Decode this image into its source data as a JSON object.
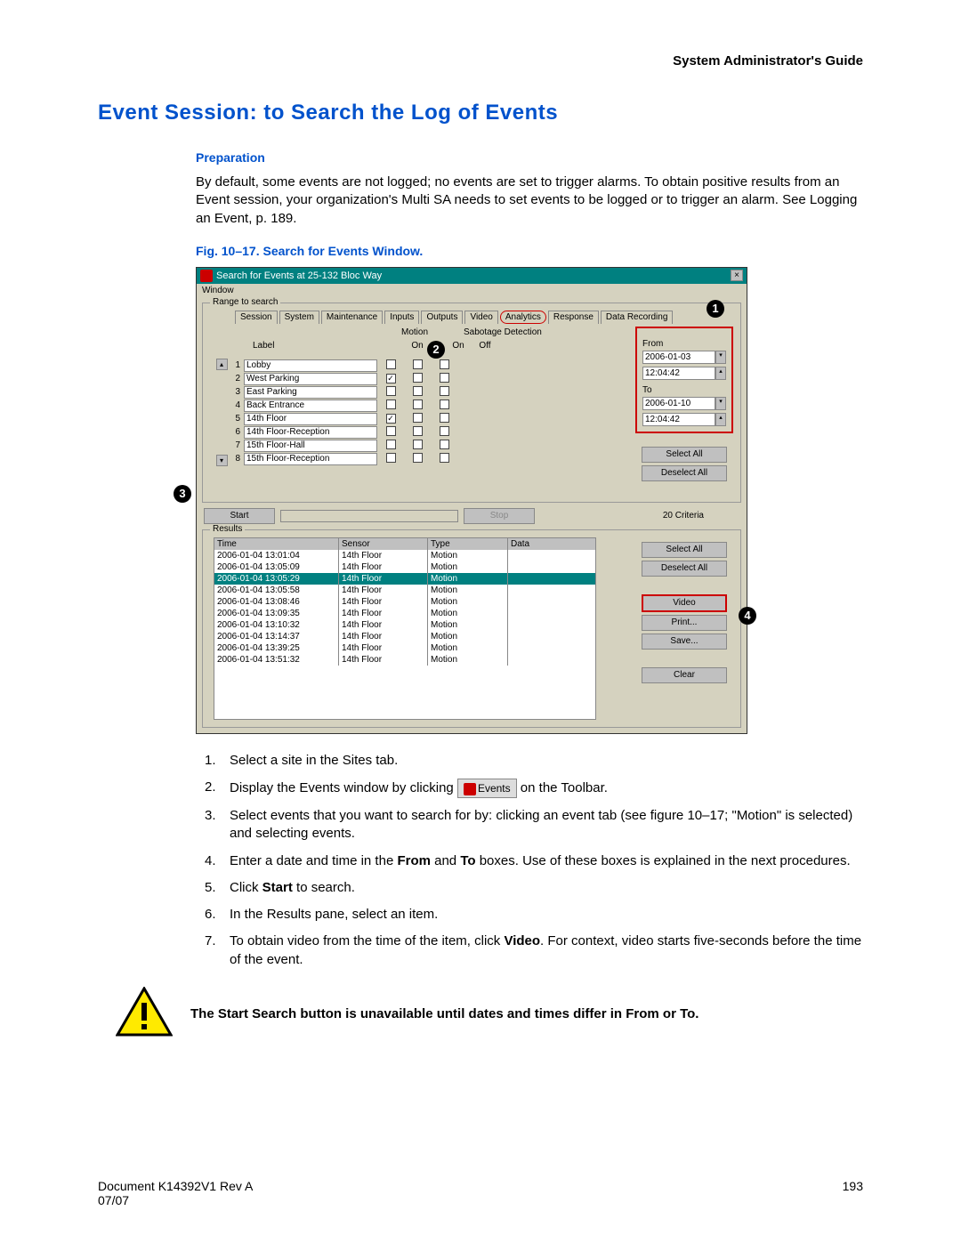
{
  "header": {
    "guide": "System Administrator's Guide"
  },
  "title": "Event Session: to Search the Log of Events",
  "preparation": {
    "label": "Preparation",
    "text": "By default, some events are not logged; no events are set to trigger alarms. To obtain positive results from an Event session, your organization's Multi SA needs to set events to be logged or to trigger an alarm. See Logging an Event, p. 189."
  },
  "figure": {
    "caption": "Fig. 10–17.  Search for Events Window."
  },
  "window": {
    "title": "Search for Events at 25-132 Bloc Way",
    "menu": "Window",
    "range_group": "Range to search",
    "tabs": [
      "Session",
      "System",
      "Maintenance",
      "Inputs",
      "Outputs",
      "Video",
      "Analytics",
      "Response",
      "Data Recording"
    ],
    "active_tab_index": 6,
    "sub_cols_left": "Motion",
    "sub_cols_right": "Sabotage Detection",
    "header_label": "Label",
    "header_cols": [
      "On",
      "On",
      "Off"
    ],
    "rows": [
      {
        "n": "1",
        "label": "Lobby",
        "checks": [
          false,
          false,
          false
        ]
      },
      {
        "n": "2",
        "label": "West Parking",
        "checks": [
          true,
          false,
          false
        ]
      },
      {
        "n": "3",
        "label": "East Parking",
        "checks": [
          false,
          false,
          false
        ]
      },
      {
        "n": "4",
        "label": "Back Entrance",
        "checks": [
          false,
          false,
          false
        ]
      },
      {
        "n": "5",
        "label": "14th Floor",
        "checks": [
          true,
          false,
          false
        ]
      },
      {
        "n": "6",
        "label": "14th Floor-Reception",
        "checks": [
          false,
          false,
          false
        ]
      },
      {
        "n": "7",
        "label": "15th Floor-Hall",
        "checks": [
          false,
          false,
          false
        ]
      },
      {
        "n": "8",
        "label": "15th Floor-Reception",
        "checks": [
          false,
          false,
          false
        ]
      }
    ],
    "from_label": "From",
    "from_date": "2006-01-03",
    "from_time": "12:04:42",
    "to_label": "To",
    "to_date": "2006-01-10",
    "to_time": "12:04:42",
    "select_all": "Select All",
    "deselect_all": "Deselect All",
    "start": "Start",
    "stop": "Stop",
    "criteria": "20 Criteria",
    "results_group": "Results",
    "results_headers": {
      "time": "Time",
      "sensor": "Sensor",
      "type": "Type",
      "data": "Data"
    },
    "results": [
      {
        "time": "2006-01-04 13:01:04",
        "sensor": "14th Floor",
        "type": "Motion",
        "data": ""
      },
      {
        "time": "2006-01-04 13:05:09",
        "sensor": "14th Floor",
        "type": "Motion",
        "data": ""
      },
      {
        "time": "2006-01-04 13:05:29",
        "sensor": "14th Floor",
        "type": "Motion",
        "data": ""
      },
      {
        "time": "2006-01-04 13:05:58",
        "sensor": "14th Floor",
        "type": "Motion",
        "data": ""
      },
      {
        "time": "2006-01-04 13:08:46",
        "sensor": "14th Floor",
        "type": "Motion",
        "data": ""
      },
      {
        "time": "2006-01-04 13:09:35",
        "sensor": "14th Floor",
        "type": "Motion",
        "data": ""
      },
      {
        "time": "2006-01-04 13:10:32",
        "sensor": "14th Floor",
        "type": "Motion",
        "data": ""
      },
      {
        "time": "2006-01-04 13:14:37",
        "sensor": "14th Floor",
        "type": "Motion",
        "data": ""
      },
      {
        "time": "2006-01-04 13:39:25",
        "sensor": "14th Floor",
        "type": "Motion",
        "data": ""
      },
      {
        "time": "2006-01-04 13:51:32",
        "sensor": "14th Floor",
        "type": "Motion",
        "data": ""
      }
    ],
    "selected_result_index": 2,
    "video": "Video",
    "print": "Print...",
    "save": "Save...",
    "clear": "Clear"
  },
  "steps": [
    "Select a site in the Sites tab.",
    "Display the Events window by clicking [EVENTS] on the Toolbar.",
    "Select events that you want to search for by: clicking an event tab (see figure 10–17; \"Motion\" is selected) and selecting events.",
    "Enter a date and time in the <b>From</b> and <b>To</b> boxes. Use of these boxes is explained in the next procedures.",
    "Click <b>Start</b> to search.",
    "In the Results pane, select an item.",
    "To obtain video from the time of the item, click <b>Video</b>. For context, video starts five-seconds before the time of the event."
  ],
  "events_button_label": "Events",
  "warning": "The Start Search button is unavailable until dates and times differ in From or To.",
  "footer": {
    "doc": "Document K14392V1 Rev A",
    "date": "07/07",
    "page": "193"
  }
}
